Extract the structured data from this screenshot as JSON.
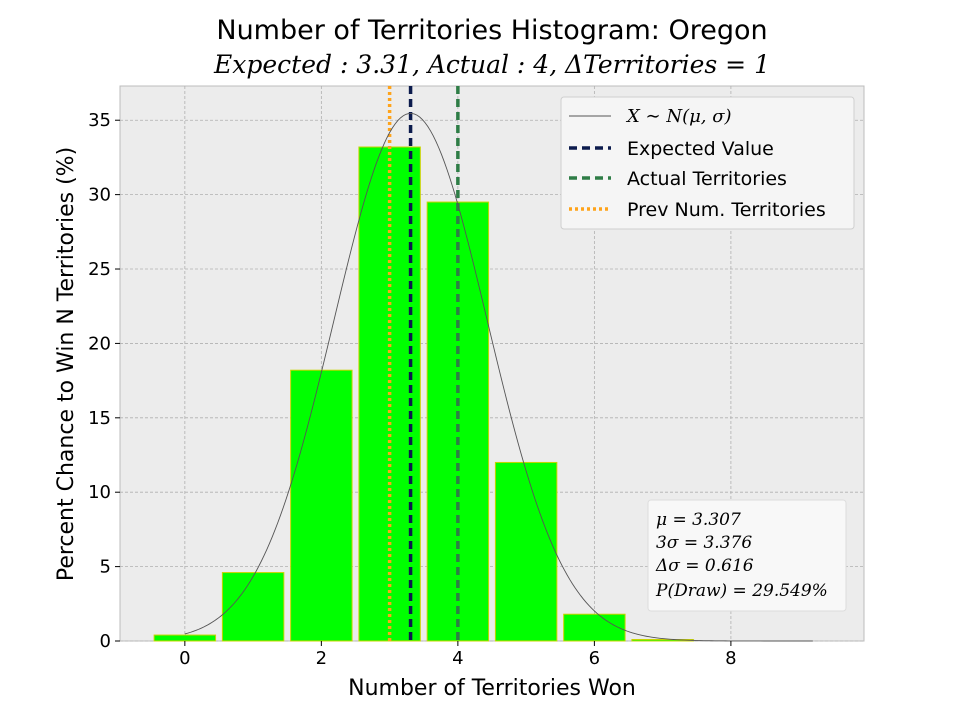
{
  "chart_data": {
    "type": "bar",
    "title": "Number of Territories Histogram: Oregon",
    "subtitle": "Expected : 3.31, Actual : 4, ΔTerritories = 1",
    "xlabel": "Number of Territories Won",
    "ylabel": "Percent Chance to Win N Territories (%)",
    "xlim": [
      -0.95,
      9.95
    ],
    "ylim": [
      0,
      37.3
    ],
    "xticks": [
      0,
      2,
      4,
      6,
      8
    ],
    "yticks": [
      0,
      5,
      10,
      15,
      20,
      25,
      30,
      35
    ],
    "grid": true,
    "legend_position": "top-right",
    "bar_color": "#00ff00",
    "bar_edge_color": "#c8d400",
    "bar_width": 0.9,
    "x": [
      0,
      1,
      2,
      3,
      4,
      5,
      6,
      7,
      8
    ],
    "values": [
      0.4,
      4.6,
      18.2,
      33.2,
      29.5,
      12.0,
      1.8,
      0.1,
      0.0
    ],
    "normal_curve": {
      "label": "X ∼ N(μ, σ)",
      "mu": 3.307,
      "sigma": 1.125,
      "scale": 100,
      "x_range": [
        0,
        9.2
      ],
      "color": "#555555"
    },
    "vlines": [
      {
        "label": "Expected Value",
        "x": 3.307,
        "color": "#0c1b4d",
        "style": "dashed"
      },
      {
        "label": "Actual Territories",
        "x": 4,
        "color": "#2e7d46",
        "style": "dashed"
      },
      {
        "label": "Prev Num. Territories",
        "x": 3,
        "color": "#ffa31a",
        "style": "dotted"
      }
    ],
    "stats_box": [
      "μ = 3.307",
      "3σ = 3.376",
      "Δσ = 0.616",
      "P(Draw) = 29.549%"
    ]
  }
}
